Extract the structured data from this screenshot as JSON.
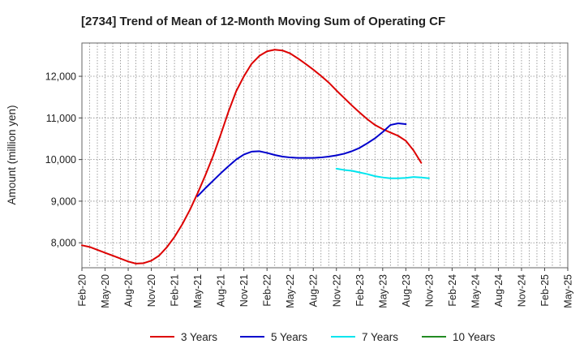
{
  "chart_data": {
    "type": "line",
    "title": "[2734]  Trend of Mean of 12-Month Moving Sum of Operating CF",
    "xlabel": "",
    "ylabel": "Amount (million yen)",
    "ylim": [
      7400,
      12800
    ],
    "yticks": [
      8000,
      9000,
      10000,
      11000,
      12000
    ],
    "ytick_labels": [
      "8,000",
      "9,000",
      "10,000",
      "11,000",
      "12,000"
    ],
    "grid": true,
    "legend_position": "bottom",
    "x_tick_labels": [
      "Feb-20",
      "May-20",
      "Aug-20",
      "Nov-20",
      "Feb-21",
      "May-21",
      "Aug-21",
      "Nov-21",
      "Feb-22",
      "May-22",
      "Aug-22",
      "Nov-22",
      "Feb-23",
      "May-23",
      "Aug-23",
      "Nov-23",
      "Feb-24",
      "May-24",
      "Aug-24",
      "Nov-24",
      "Feb-25",
      "May-25"
    ],
    "series": [
      {
        "name": "3 Years",
        "color": "#dd0000",
        "start_index": 0,
        "values": [
          7940,
          7900,
          7830,
          7760,
          7690,
          7620,
          7550,
          7500,
          7510,
          7570,
          7690,
          7890,
          8140,
          8440,
          8790,
          9190,
          9620,
          10080,
          10600,
          11150,
          11640,
          12000,
          12300,
          12490,
          12600,
          12640,
          12620,
          12550,
          12430,
          12300,
          12160,
          12010,
          11850,
          11660,
          11480,
          11300,
          11130,
          10970,
          10830,
          10730,
          10650,
          10570,
          10450,
          10220,
          9920
        ]
      },
      {
        "name": "5 Years",
        "color": "#0000cc",
        "start_index": 15,
        "values": [
          9120,
          9310,
          9490,
          9670,
          9840,
          10000,
          10120,
          10190,
          10200,
          10160,
          10110,
          10070,
          10050,
          10040,
          10040,
          10040,
          10050,
          10070,
          10100,
          10140,
          10200,
          10280,
          10390,
          10510,
          10660,
          10830,
          10870,
          10850
        ]
      },
      {
        "name": "7 Years",
        "color": "#00e5ee",
        "start_index": 33,
        "values": [
          9780,
          9750,
          9730,
          9690,
          9650,
          9600,
          9570,
          9550,
          9550,
          9560,
          9580,
          9570,
          9550
        ]
      },
      {
        "name": "10 Years",
        "color": "#228b22",
        "start_index": 0,
        "values": []
      }
    ]
  }
}
